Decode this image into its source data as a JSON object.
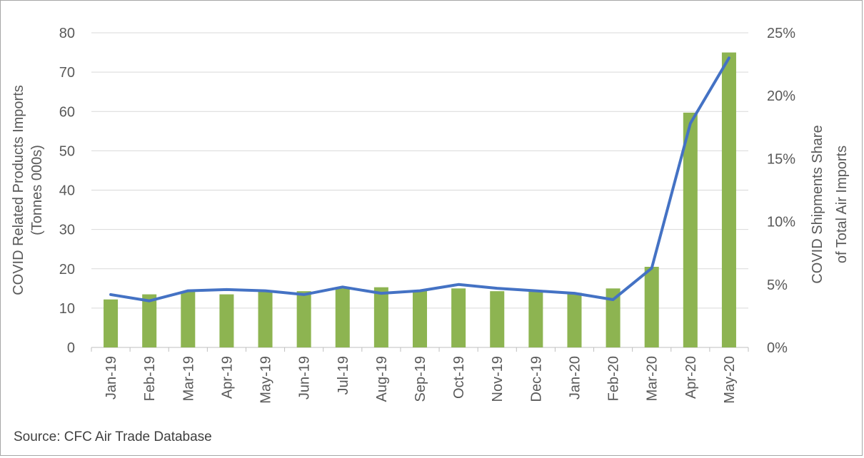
{
  "chart_data": {
    "type": "bar",
    "categories": [
      "Jan-19",
      "Feb-19",
      "Mar-19",
      "Apr-19",
      "May-19",
      "Jun-19",
      "Jul-19",
      "Aug-19",
      "Sep-19",
      "Oct-19",
      "Nov-19",
      "Dec-19",
      "Jan-20",
      "Feb-20",
      "Mar-20",
      "Apr-20",
      "May-20"
    ],
    "series": [
      {
        "type": "bar",
        "axis": "left",
        "color": "#8db451",
        "values": [
          12.2,
          13.5,
          14.3,
          13.5,
          14.2,
          14.3,
          15.0,
          15.3,
          14.5,
          15.0,
          14.3,
          14.3,
          13.9,
          15.0,
          20.5,
          59.7,
          75.0
        ]
      },
      {
        "type": "line",
        "axis": "right",
        "color": "#4472c4",
        "values": [
          4.2,
          3.7,
          4.5,
          4.6,
          4.5,
          4.2,
          4.8,
          4.3,
          4.5,
          5.0,
          4.7,
          4.5,
          4.3,
          3.8,
          6.3,
          17.8,
          23.0
        ]
      }
    ],
    "ylim": [
      0,
      80
    ],
    "yticks": [
      "0",
      "10",
      "20",
      "30",
      "40",
      "50",
      "60",
      "70",
      "80"
    ],
    "y2lim": [
      0,
      25
    ],
    "y2ticks": [
      "0%",
      "5%",
      "10%",
      "15%",
      "20%",
      "25%"
    ],
    "ylabel_lines": [
      "COVID Related Products Imports",
      "(Tonnes 000s)"
    ],
    "y2label_lines": [
      "COVID Shipments Share",
      "of Total Air Imports"
    ],
    "grid": true,
    "gridColor": "#d9d9d9"
  },
  "source": "Source: CFC Air Trade Database"
}
